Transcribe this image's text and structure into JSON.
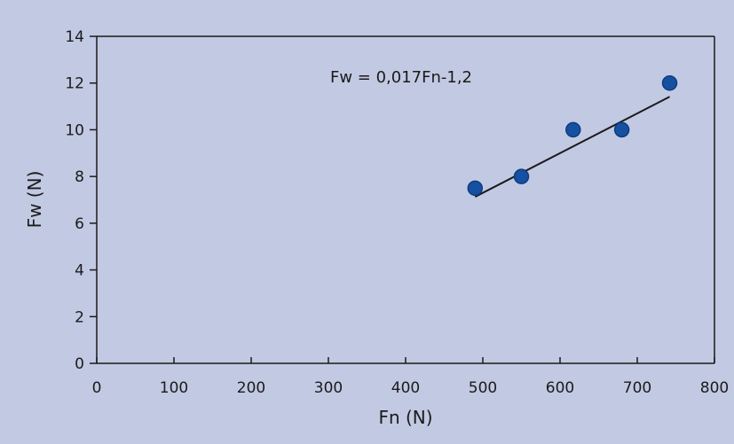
{
  "chart_data": {
    "type": "scatter",
    "xlabel": "Fn (N)",
    "ylabel": "Fw (N)",
    "xlim": [
      0,
      800
    ],
    "ylim": [
      0,
      14
    ],
    "xticks": [
      0,
      100,
      200,
      300,
      400,
      500,
      600,
      700,
      800
    ],
    "yticks": [
      0,
      2,
      4,
      6,
      8,
      10,
      12,
      14
    ],
    "grid": false,
    "points": [
      {
        "x": 490,
        "y": 7.5
      },
      {
        "x": 550,
        "y": 8
      },
      {
        "x": 617,
        "y": 10
      },
      {
        "x": 680,
        "y": 10
      },
      {
        "x": 742,
        "y": 12
      }
    ],
    "trendline": {
      "slope": 0.017,
      "intercept": -1.2,
      "x_range": [
        490,
        742
      ],
      "equation": "Fw = 0,017Fn-1,2"
    },
    "colors": {
      "background": "#c2c9e3",
      "marker": "#1650a0",
      "marker_edge": "#0d3c7f",
      "axis": "#1b1b1b",
      "trendline": "#1b1b1b"
    }
  }
}
